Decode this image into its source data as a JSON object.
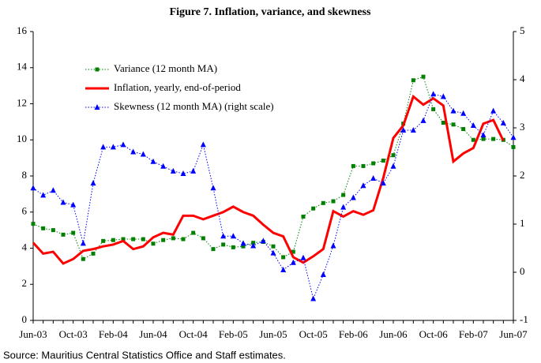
{
  "chart_data": {
    "type": "line",
    "title": "Figure 7. Inflation, variance, and skewness",
    "source": "Source: Mauritius Central Statistics Office and Staff estimates.",
    "categories": [
      "Jun-03",
      null,
      null,
      null,
      "Oct-03",
      null,
      null,
      null,
      "Feb-04",
      null,
      null,
      null,
      "Jun-04",
      null,
      null,
      null,
      "Oct-04",
      null,
      null,
      null,
      "Feb-05",
      null,
      null,
      null,
      "Jun-05",
      null,
      null,
      null,
      "Oct-05",
      null,
      null,
      null,
      "Feb-06",
      null,
      null,
      null,
      "Jun-06",
      null,
      null,
      null,
      "Oct-06",
      null,
      null,
      null,
      "Feb-07",
      null,
      null,
      null,
      "Jun-07"
    ],
    "ylim": [
      0,
      16
    ],
    "yticks": [
      0,
      2,
      4,
      6,
      8,
      10,
      12,
      14,
      16
    ],
    "y2lim": [
      -1,
      5
    ],
    "y2ticks": [
      -1,
      0,
      1,
      2,
      3,
      4,
      5
    ],
    "legend": "upper left",
    "series": [
      {
        "name": "Variance (12 month MA)",
        "color": "#008000",
        "style": "dotted-square",
        "values": [
          5.35,
          5.1,
          5.0,
          4.75,
          4.85,
          3.4,
          3.7,
          4.4,
          4.45,
          4.5,
          4.5,
          4.5,
          4.25,
          4.45,
          4.55,
          4.5,
          4.85,
          4.55,
          3.95,
          4.2,
          4.05,
          4.1,
          4.3,
          4.35,
          4.1,
          3.5,
          3.8,
          5.75,
          6.2,
          6.5,
          6.6,
          6.95,
          8.55,
          8.55,
          8.7,
          8.85,
          9.15,
          10.9,
          13.3,
          13.5,
          11.7,
          10.95,
          10.85,
          10.6,
          10.0,
          10.05,
          10.05,
          10.0,
          9.6
        ]
      },
      {
        "name": "Inflation, yearly, end-of-period",
        "color": "#ff0000",
        "style": "solid",
        "values": [
          4.3,
          3.7,
          3.8,
          3.15,
          3.4,
          3.85,
          3.95,
          4.1,
          4.2,
          4.4,
          3.95,
          4.1,
          4.6,
          4.85,
          4.75,
          5.8,
          5.8,
          5.6,
          5.8,
          6.0,
          6.3,
          6.0,
          5.8,
          5.3,
          4.85,
          4.65,
          3.5,
          3.2,
          3.55,
          3.95,
          6.05,
          5.75,
          6.05,
          5.85,
          6.1,
          7.9,
          10.1,
          10.8,
          12.4,
          11.95,
          12.3,
          11.9,
          8.8,
          9.25,
          9.55,
          10.9,
          11.1,
          9.95,
          null
        ]
      },
      {
        "name": "Skewness (12 month MA) (right scale)",
        "color": "#0000ff",
        "style": "dotted-triangle",
        "axis": "y2",
        "values": [
          1.75,
          1.6,
          1.7,
          1.45,
          1.4,
          0.6,
          1.85,
          2.6,
          2.6,
          2.65,
          2.5,
          2.45,
          2.3,
          2.2,
          2.1,
          2.05,
          2.1,
          2.65,
          1.75,
          0.75,
          0.75,
          0.6,
          0.55,
          0.65,
          0.4,
          0.05,
          0.2,
          0.3,
          -0.55,
          -0.05,
          0.55,
          1.35,
          1.55,
          1.8,
          1.95,
          1.85,
          2.2,
          2.95,
          2.95,
          3.15,
          3.7,
          3.65,
          3.35,
          3.3,
          3.05,
          2.85,
          3.35,
          3.1,
          2.8
        ]
      }
    ]
  }
}
